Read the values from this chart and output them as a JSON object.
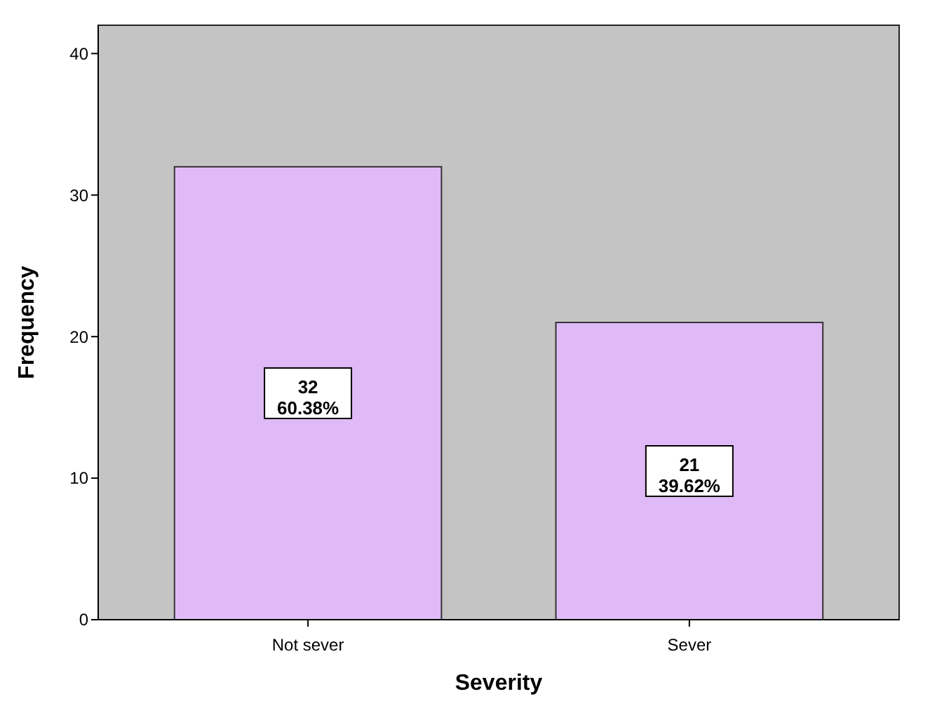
{
  "chart_data": {
    "type": "bar",
    "xlabel": "Severity",
    "ylabel": "Frequency",
    "categories": [
      "Not sever",
      "Sever"
    ],
    "values": [
      32,
      21
    ],
    "value_labels": [
      "32\n60.38%",
      "21\n39.62%"
    ],
    "color": "#dfbaf6",
    "ylim": [
      0,
      42
    ],
    "yticks": [
      0,
      10,
      20,
      30,
      40
    ]
  }
}
